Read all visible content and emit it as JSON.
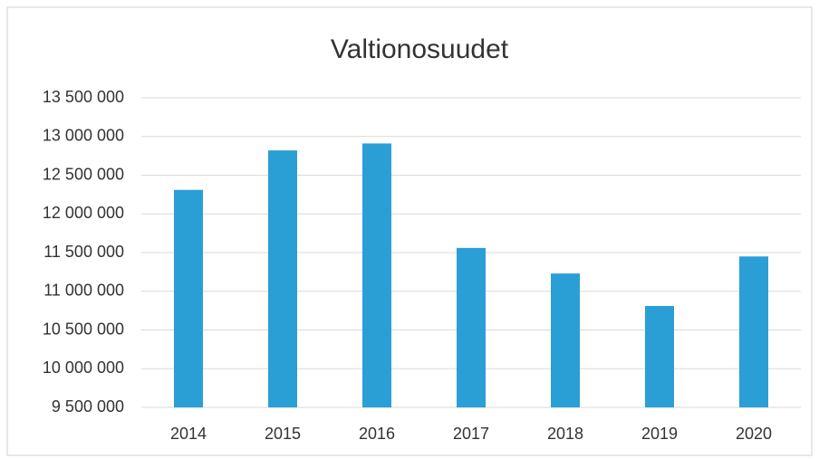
{
  "chart_data": {
    "type": "bar",
    "title": "Valtionosuudet",
    "categories": [
      "2014",
      "2015",
      "2016",
      "2017",
      "2018",
      "2019",
      "2020"
    ],
    "values": [
      12310000,
      12820000,
      12910000,
      11560000,
      11230000,
      10810000,
      11450000
    ],
    "color": "#2a9fd6",
    "ylim": [
      9500000,
      13500000
    ],
    "yticks": [
      {
        "value": 9500000,
        "label": "9 500 000"
      },
      {
        "value": 10000000,
        "label": "10 000 000"
      },
      {
        "value": 10500000,
        "label": "10 500 000"
      },
      {
        "value": 11000000,
        "label": "11 000 000"
      },
      {
        "value": 11500000,
        "label": "11 500 000"
      },
      {
        "value": 12000000,
        "label": "12 000 000"
      },
      {
        "value": 12500000,
        "label": "12 500 000"
      },
      {
        "value": 13000000,
        "label": "13 000 000"
      },
      {
        "value": 13500000,
        "label": "13 500 000"
      }
    ],
    "grid": true
  }
}
